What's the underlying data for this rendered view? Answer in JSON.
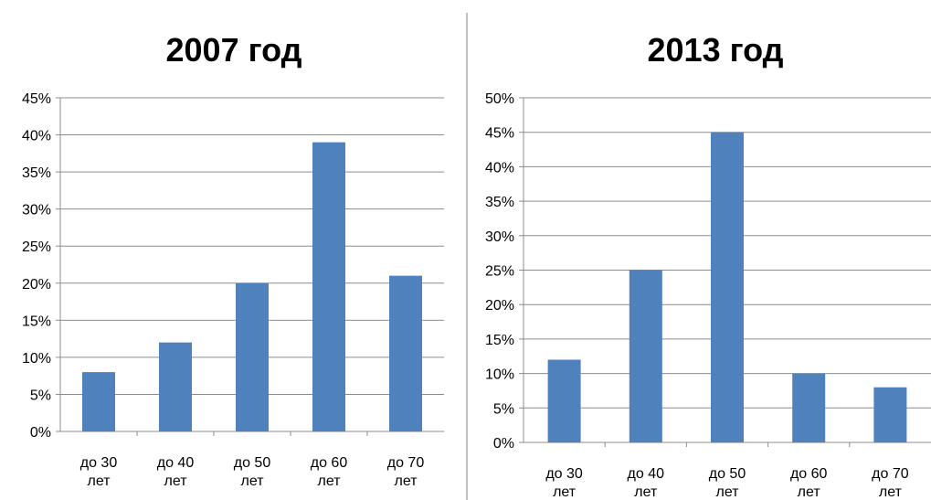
{
  "chart_data": [
    {
      "type": "bar",
      "title": "2007 год",
      "categories": [
        [
          "до 30",
          "лет"
        ],
        [
          "до 40",
          "лет"
        ],
        [
          "до 50",
          "лет"
        ],
        [
          "до 60",
          "лет"
        ],
        [
          "до 70",
          "лет"
        ]
      ],
      "values": [
        8,
        12,
        20,
        39,
        21
      ],
      "ylim": [
        0,
        45
      ],
      "ytick_step": 5,
      "y_unit": "%",
      "grid": true,
      "bar_color": "#4F81BD"
    },
    {
      "type": "bar",
      "title": "2013 год",
      "categories": [
        [
          "до 30",
          "лет"
        ],
        [
          "до 40",
          "лет"
        ],
        [
          "до 50",
          "лет"
        ],
        [
          "до 60",
          "лет"
        ],
        [
          "до 70",
          "лет"
        ]
      ],
      "values": [
        12,
        25,
        45,
        10,
        8
      ],
      "ylim": [
        0,
        50
      ],
      "ytick_step": 5,
      "y_unit": "%",
      "grid": true,
      "bar_color": "#4F81BD"
    }
  ]
}
